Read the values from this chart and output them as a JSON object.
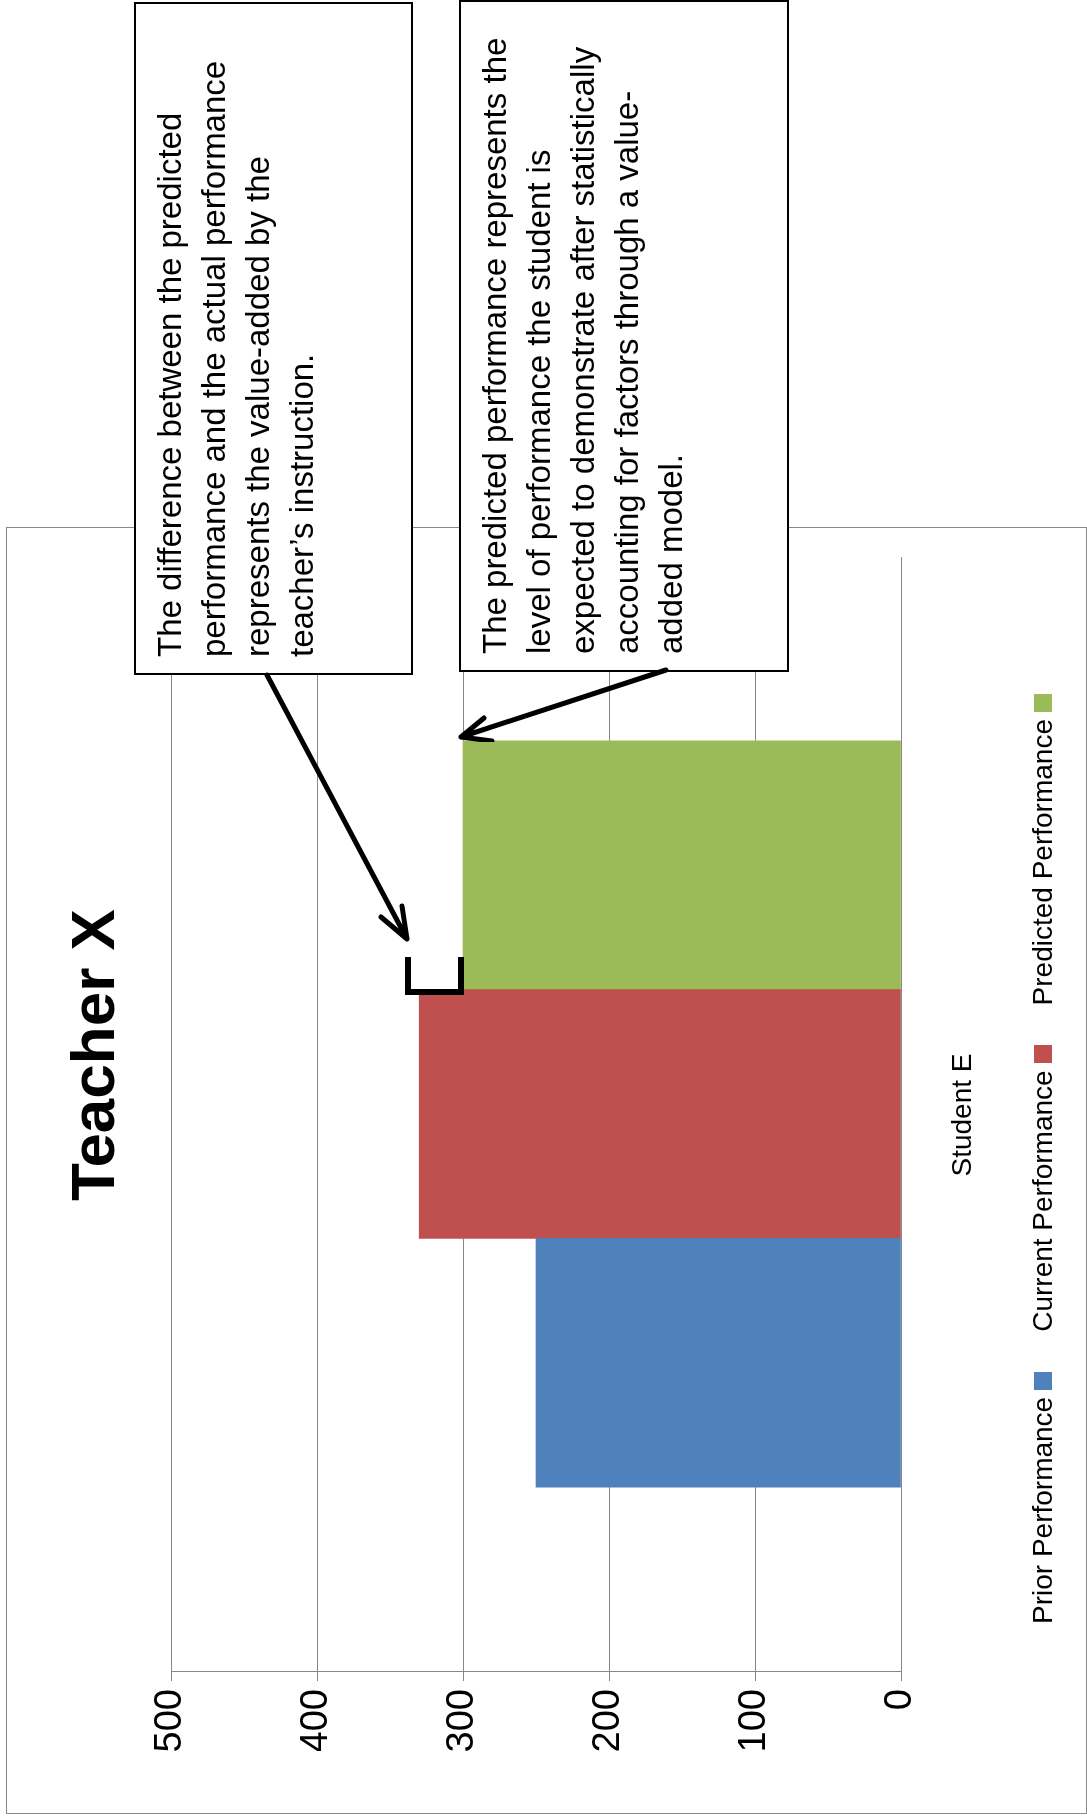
{
  "chart_data": {
    "type": "bar",
    "orientation": "horizontal",
    "title": "Teacher X",
    "categories": [
      "Student E"
    ],
    "series": [
      {
        "name": "Prior Performance",
        "color": "#4f81bd",
        "values": [
          250
        ]
      },
      {
        "name": "Current Performance",
        "color": "#c0504d",
        "values": [
          330
        ]
      },
      {
        "name": "Predicted Performance",
        "color": "#9bbb59",
        "values": [
          300
        ]
      }
    ],
    "xlim": [
      500,
      0
    ],
    "xticks": [
      0,
      100,
      200,
      300,
      400,
      500
    ],
    "grid": "x",
    "legend": "right",
    "annotations": [
      "The difference between the predicted performance and the actual performance represents the value-added by the teacher’s instruction.",
      "The predicted performance represents the level of performance the student is expected to demonstrate after statistically accounting for factors through a value-added model."
    ]
  }
}
